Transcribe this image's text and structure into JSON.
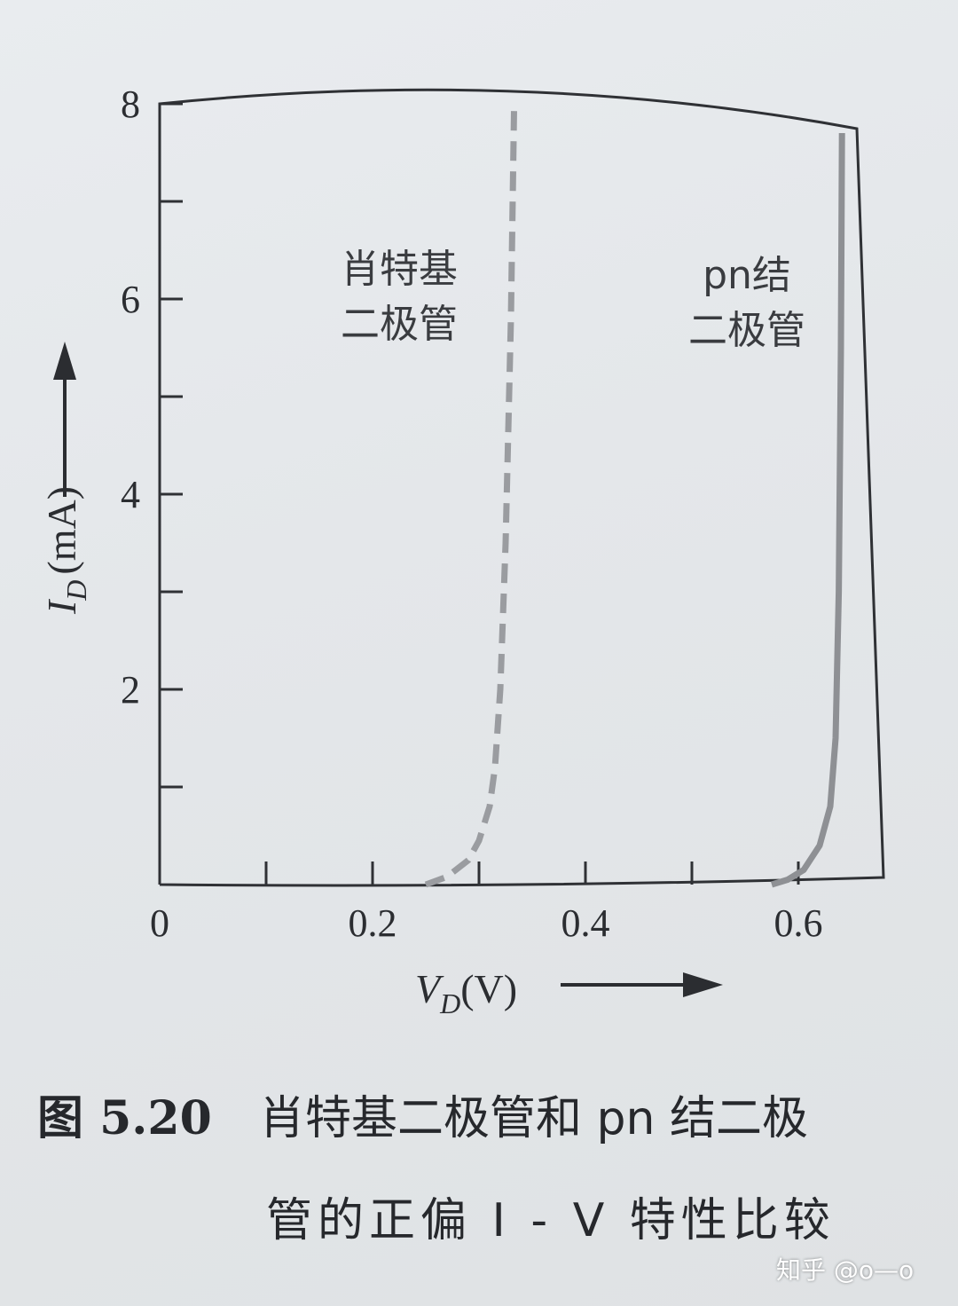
{
  "chart_data": {
    "type": "line",
    "x_label_var": "V",
    "x_label_sub": "D",
    "x_label_unit": "(V)",
    "y_label_var": "I",
    "y_label_sub": "D",
    "y_label_unit": "(mA)",
    "xlim": [
      0,
      0.68
    ],
    "ylim": [
      0,
      8
    ],
    "x_ticks": [
      0,
      0.1,
      0.2,
      0.3,
      0.4,
      0.5,
      0.6
    ],
    "x_tick_labels": [
      {
        "value": 0,
        "label": "0"
      },
      {
        "value": 0.2,
        "label": "0.2"
      },
      {
        "value": 0.4,
        "label": "0.4"
      },
      {
        "value": 0.6,
        "label": "0.6"
      }
    ],
    "y_ticks": [
      0,
      1,
      2,
      3,
      4,
      5,
      6,
      7,
      8
    ],
    "y_tick_labels": [
      {
        "value": 2,
        "label": "2"
      },
      {
        "value": 4,
        "label": "4"
      },
      {
        "value": 6,
        "label": "6"
      },
      {
        "value": 8,
        "label": "8"
      }
    ],
    "series": [
      {
        "label_lines": [
          "肖特基",
          "二极管"
        ],
        "style": "dashed",
        "color": "#9a9ca0",
        "x": [
          0.25,
          0.27,
          0.29,
          0.3,
          0.31,
          0.315,
          0.32,
          0.325,
          0.33,
          0.333
        ],
        "y": [
          0.0,
          0.08,
          0.25,
          0.45,
          0.8,
          1.2,
          2.0,
          3.5,
          5.8,
          8.0
        ]
      },
      {
        "label_lines": [
          "pn结",
          "二极管"
        ],
        "style": "solid",
        "color": "#8e9094",
        "x": [
          0.575,
          0.59,
          0.605,
          0.62,
          0.63,
          0.635,
          0.638,
          0.64,
          0.641
        ],
        "y": [
          0.0,
          0.05,
          0.15,
          0.4,
          0.8,
          1.5,
          3.0,
          5.5,
          7.7
        ]
      }
    ]
  },
  "caption": {
    "figure_number": "图 5.20",
    "line1": "肖特基二极管和 pn 结二极",
    "line2": "管的正偏 I - V 特性比较"
  },
  "watermark": "知乎 @o—o"
}
